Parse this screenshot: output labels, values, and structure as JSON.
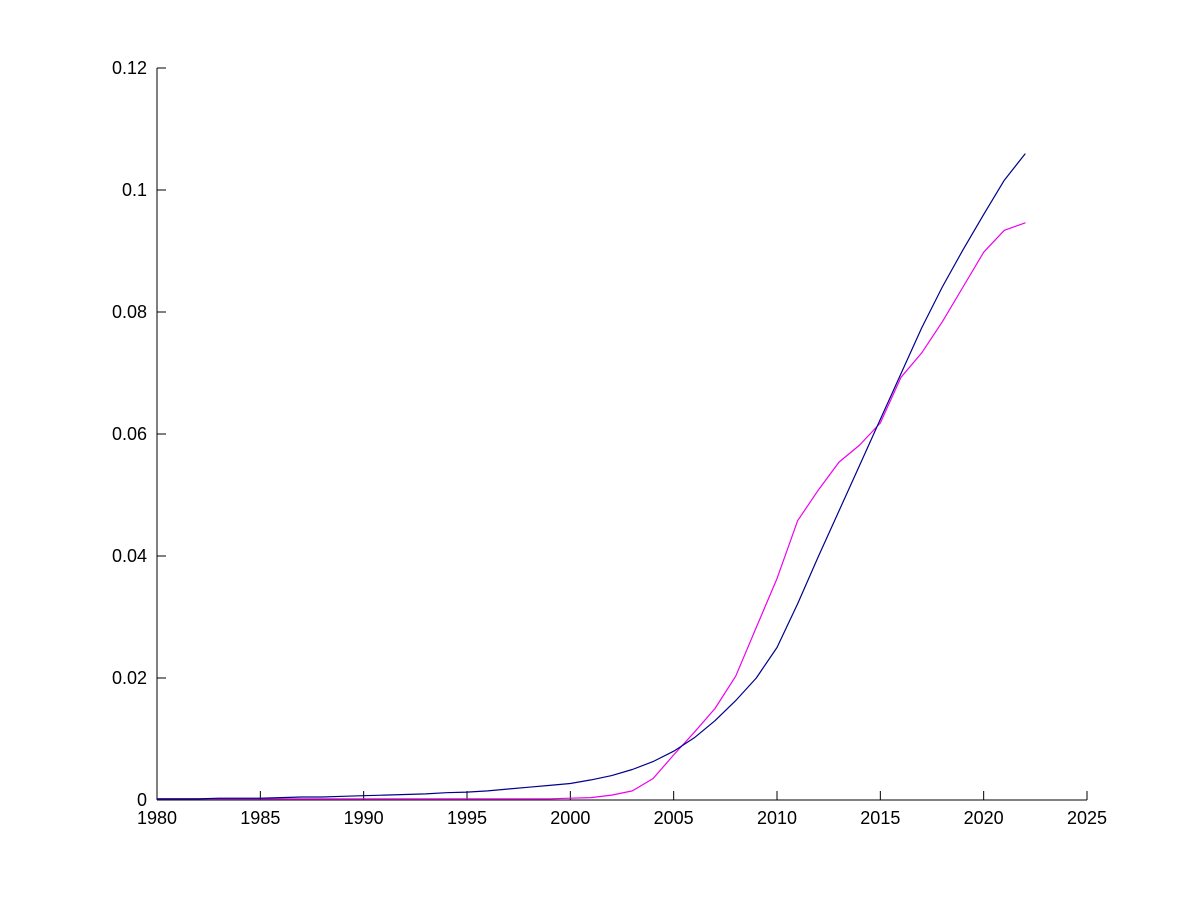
{
  "page": {
    "background": "#FFFFFF"
  },
  "chart_data": {
    "type": "line",
    "title": "",
    "xlabel": "",
    "ylabel": "",
    "grid": false,
    "legend": "none",
    "axis_color": "#000000",
    "x_range": [
      1980,
      2025
    ],
    "y_range": [
      0,
      0.12
    ],
    "x_tick_values": [
      1980,
      1985,
      1990,
      1995,
      2000,
      2005,
      2010,
      2015,
      2020,
      2025
    ],
    "x_tick_labels": [
      "1980",
      "1985",
      "1990",
      "1995",
      "2000",
      "2005",
      "2010",
      "2015",
      "2020",
      "2025"
    ],
    "y_tick_values": [
      0,
      0.02,
      0.04,
      0.06,
      0.08,
      0.1,
      0.12
    ],
    "y_tick_labels": [
      "0",
      "0.02",
      "0.04",
      "0.06",
      "0.08",
      "0.1",
      "0.12"
    ],
    "x": [
      1980,
      1981,
      1982,
      1983,
      1984,
      1985,
      1986,
      1987,
      1988,
      1989,
      1990,
      1991,
      1992,
      1993,
      1994,
      1995,
      1996,
      1997,
      1998,
      1999,
      2000,
      2001,
      2002,
      2003,
      2004,
      2005,
      2006,
      2007,
      2008,
      2009,
      2010,
      2011,
      2012,
      2013,
      2014,
      2015,
      2016,
      2017,
      2018,
      2019,
      2020,
      2021,
      2022
    ],
    "series": [
      {
        "name": "navy-series",
        "color": "#00008B",
        "values": [
          0.0002,
          0.0002,
          0.0002,
          0.0003,
          0.0003,
          0.0003,
          0.0004,
          0.0005,
          0.0005,
          0.0006,
          0.0007,
          0.0008,
          0.0009,
          0.001,
          0.0012,
          0.0013,
          0.0015,
          0.0018,
          0.0021,
          0.0024,
          0.0027,
          0.0033,
          0.004,
          0.005,
          0.0063,
          0.008,
          0.0102,
          0.013,
          0.0163,
          0.02,
          0.025,
          0.0322,
          0.0399,
          0.0474,
          0.0549,
          0.0624,
          0.0699,
          0.0774,
          0.0841,
          0.0902,
          0.096,
          0.1016,
          0.1059
        ]
      },
      {
        "name": "magenta-series",
        "color": "#EE00EE",
        "values": [
          0.0002,
          0.0002,
          0.0002,
          0.0002,
          0.0002,
          0.0002,
          0.0002,
          0.0002,
          0.0002,
          0.0002,
          0.0002,
          0.0002,
          0.0002,
          0.0002,
          0.0002,
          0.0002,
          0.0002,
          0.0002,
          0.0002,
          0.0002,
          0.0003,
          0.0004,
          0.0008,
          0.0015,
          0.0035,
          0.0074,
          0.0111,
          0.015,
          0.0203,
          0.0283,
          0.0363,
          0.0458,
          0.0508,
          0.0554,
          0.0582,
          0.0618,
          0.0693,
          0.0733,
          0.0784,
          0.0841,
          0.0898,
          0.0934,
          0.0946
        ]
      }
    ]
  }
}
